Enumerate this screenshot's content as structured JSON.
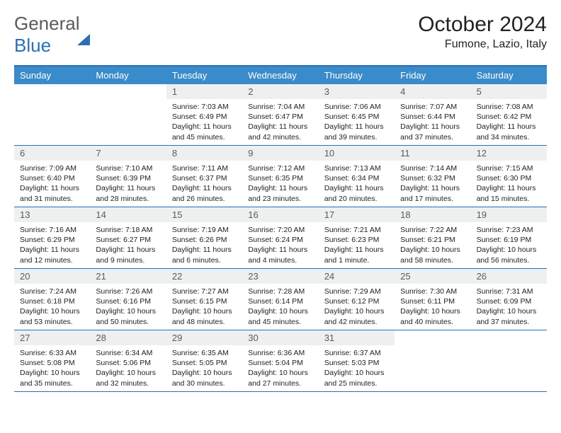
{
  "brand": {
    "part1": "General",
    "part2": "Blue"
  },
  "title": "October 2024",
  "location": "Fumone, Lazio, Italy",
  "day_headers": [
    "Sunday",
    "Monday",
    "Tuesday",
    "Wednesday",
    "Thursday",
    "Friday",
    "Saturday"
  ],
  "colors": {
    "accent": "#2a6fb5",
    "header_bg": "#3a8bc9",
    "daynum_bg": "#eef0f0",
    "text": "#222222",
    "muted": "#5a5a5a",
    "background": "#ffffff"
  },
  "typography": {
    "title_fontsize": 30,
    "location_fontsize": 16,
    "header_fontsize": 13,
    "daynum_fontsize": 13,
    "info_fontsize": 10.5,
    "font_family": "Arial"
  },
  "layout": {
    "columns": 7,
    "rows": 5,
    "leading_blanks": 2,
    "trailing_blanks": 2
  },
  "days": [
    {
      "n": "1",
      "sunrise": "Sunrise: 7:03 AM",
      "sunset": "Sunset: 6:49 PM",
      "daylight": "Daylight: 11 hours and 45 minutes."
    },
    {
      "n": "2",
      "sunrise": "Sunrise: 7:04 AM",
      "sunset": "Sunset: 6:47 PM",
      "daylight": "Daylight: 11 hours and 42 minutes."
    },
    {
      "n": "3",
      "sunrise": "Sunrise: 7:06 AM",
      "sunset": "Sunset: 6:45 PM",
      "daylight": "Daylight: 11 hours and 39 minutes."
    },
    {
      "n": "4",
      "sunrise": "Sunrise: 7:07 AM",
      "sunset": "Sunset: 6:44 PM",
      "daylight": "Daylight: 11 hours and 37 minutes."
    },
    {
      "n": "5",
      "sunrise": "Sunrise: 7:08 AM",
      "sunset": "Sunset: 6:42 PM",
      "daylight": "Daylight: 11 hours and 34 minutes."
    },
    {
      "n": "6",
      "sunrise": "Sunrise: 7:09 AM",
      "sunset": "Sunset: 6:40 PM",
      "daylight": "Daylight: 11 hours and 31 minutes."
    },
    {
      "n": "7",
      "sunrise": "Sunrise: 7:10 AM",
      "sunset": "Sunset: 6:39 PM",
      "daylight": "Daylight: 11 hours and 28 minutes."
    },
    {
      "n": "8",
      "sunrise": "Sunrise: 7:11 AM",
      "sunset": "Sunset: 6:37 PM",
      "daylight": "Daylight: 11 hours and 26 minutes."
    },
    {
      "n": "9",
      "sunrise": "Sunrise: 7:12 AM",
      "sunset": "Sunset: 6:35 PM",
      "daylight": "Daylight: 11 hours and 23 minutes."
    },
    {
      "n": "10",
      "sunrise": "Sunrise: 7:13 AM",
      "sunset": "Sunset: 6:34 PM",
      "daylight": "Daylight: 11 hours and 20 minutes."
    },
    {
      "n": "11",
      "sunrise": "Sunrise: 7:14 AM",
      "sunset": "Sunset: 6:32 PM",
      "daylight": "Daylight: 11 hours and 17 minutes."
    },
    {
      "n": "12",
      "sunrise": "Sunrise: 7:15 AM",
      "sunset": "Sunset: 6:30 PM",
      "daylight": "Daylight: 11 hours and 15 minutes."
    },
    {
      "n": "13",
      "sunrise": "Sunrise: 7:16 AM",
      "sunset": "Sunset: 6:29 PM",
      "daylight": "Daylight: 11 hours and 12 minutes."
    },
    {
      "n": "14",
      "sunrise": "Sunrise: 7:18 AM",
      "sunset": "Sunset: 6:27 PM",
      "daylight": "Daylight: 11 hours and 9 minutes."
    },
    {
      "n": "15",
      "sunrise": "Sunrise: 7:19 AM",
      "sunset": "Sunset: 6:26 PM",
      "daylight": "Daylight: 11 hours and 6 minutes."
    },
    {
      "n": "16",
      "sunrise": "Sunrise: 7:20 AM",
      "sunset": "Sunset: 6:24 PM",
      "daylight": "Daylight: 11 hours and 4 minutes."
    },
    {
      "n": "17",
      "sunrise": "Sunrise: 7:21 AM",
      "sunset": "Sunset: 6:23 PM",
      "daylight": "Daylight: 11 hours and 1 minute."
    },
    {
      "n": "18",
      "sunrise": "Sunrise: 7:22 AM",
      "sunset": "Sunset: 6:21 PM",
      "daylight": "Daylight: 10 hours and 58 minutes."
    },
    {
      "n": "19",
      "sunrise": "Sunrise: 7:23 AM",
      "sunset": "Sunset: 6:19 PM",
      "daylight": "Daylight: 10 hours and 56 minutes."
    },
    {
      "n": "20",
      "sunrise": "Sunrise: 7:24 AM",
      "sunset": "Sunset: 6:18 PM",
      "daylight": "Daylight: 10 hours and 53 minutes."
    },
    {
      "n": "21",
      "sunrise": "Sunrise: 7:26 AM",
      "sunset": "Sunset: 6:16 PM",
      "daylight": "Daylight: 10 hours and 50 minutes."
    },
    {
      "n": "22",
      "sunrise": "Sunrise: 7:27 AM",
      "sunset": "Sunset: 6:15 PM",
      "daylight": "Daylight: 10 hours and 48 minutes."
    },
    {
      "n": "23",
      "sunrise": "Sunrise: 7:28 AM",
      "sunset": "Sunset: 6:14 PM",
      "daylight": "Daylight: 10 hours and 45 minutes."
    },
    {
      "n": "24",
      "sunrise": "Sunrise: 7:29 AM",
      "sunset": "Sunset: 6:12 PM",
      "daylight": "Daylight: 10 hours and 42 minutes."
    },
    {
      "n": "25",
      "sunrise": "Sunrise: 7:30 AM",
      "sunset": "Sunset: 6:11 PM",
      "daylight": "Daylight: 10 hours and 40 minutes."
    },
    {
      "n": "26",
      "sunrise": "Sunrise: 7:31 AM",
      "sunset": "Sunset: 6:09 PM",
      "daylight": "Daylight: 10 hours and 37 minutes."
    },
    {
      "n": "27",
      "sunrise": "Sunrise: 6:33 AM",
      "sunset": "Sunset: 5:08 PM",
      "daylight": "Daylight: 10 hours and 35 minutes."
    },
    {
      "n": "28",
      "sunrise": "Sunrise: 6:34 AM",
      "sunset": "Sunset: 5:06 PM",
      "daylight": "Daylight: 10 hours and 32 minutes."
    },
    {
      "n": "29",
      "sunrise": "Sunrise: 6:35 AM",
      "sunset": "Sunset: 5:05 PM",
      "daylight": "Daylight: 10 hours and 30 minutes."
    },
    {
      "n": "30",
      "sunrise": "Sunrise: 6:36 AM",
      "sunset": "Sunset: 5:04 PM",
      "daylight": "Daylight: 10 hours and 27 minutes."
    },
    {
      "n": "31",
      "sunrise": "Sunrise: 6:37 AM",
      "sunset": "Sunset: 5:03 PM",
      "daylight": "Daylight: 10 hours and 25 minutes."
    }
  ]
}
